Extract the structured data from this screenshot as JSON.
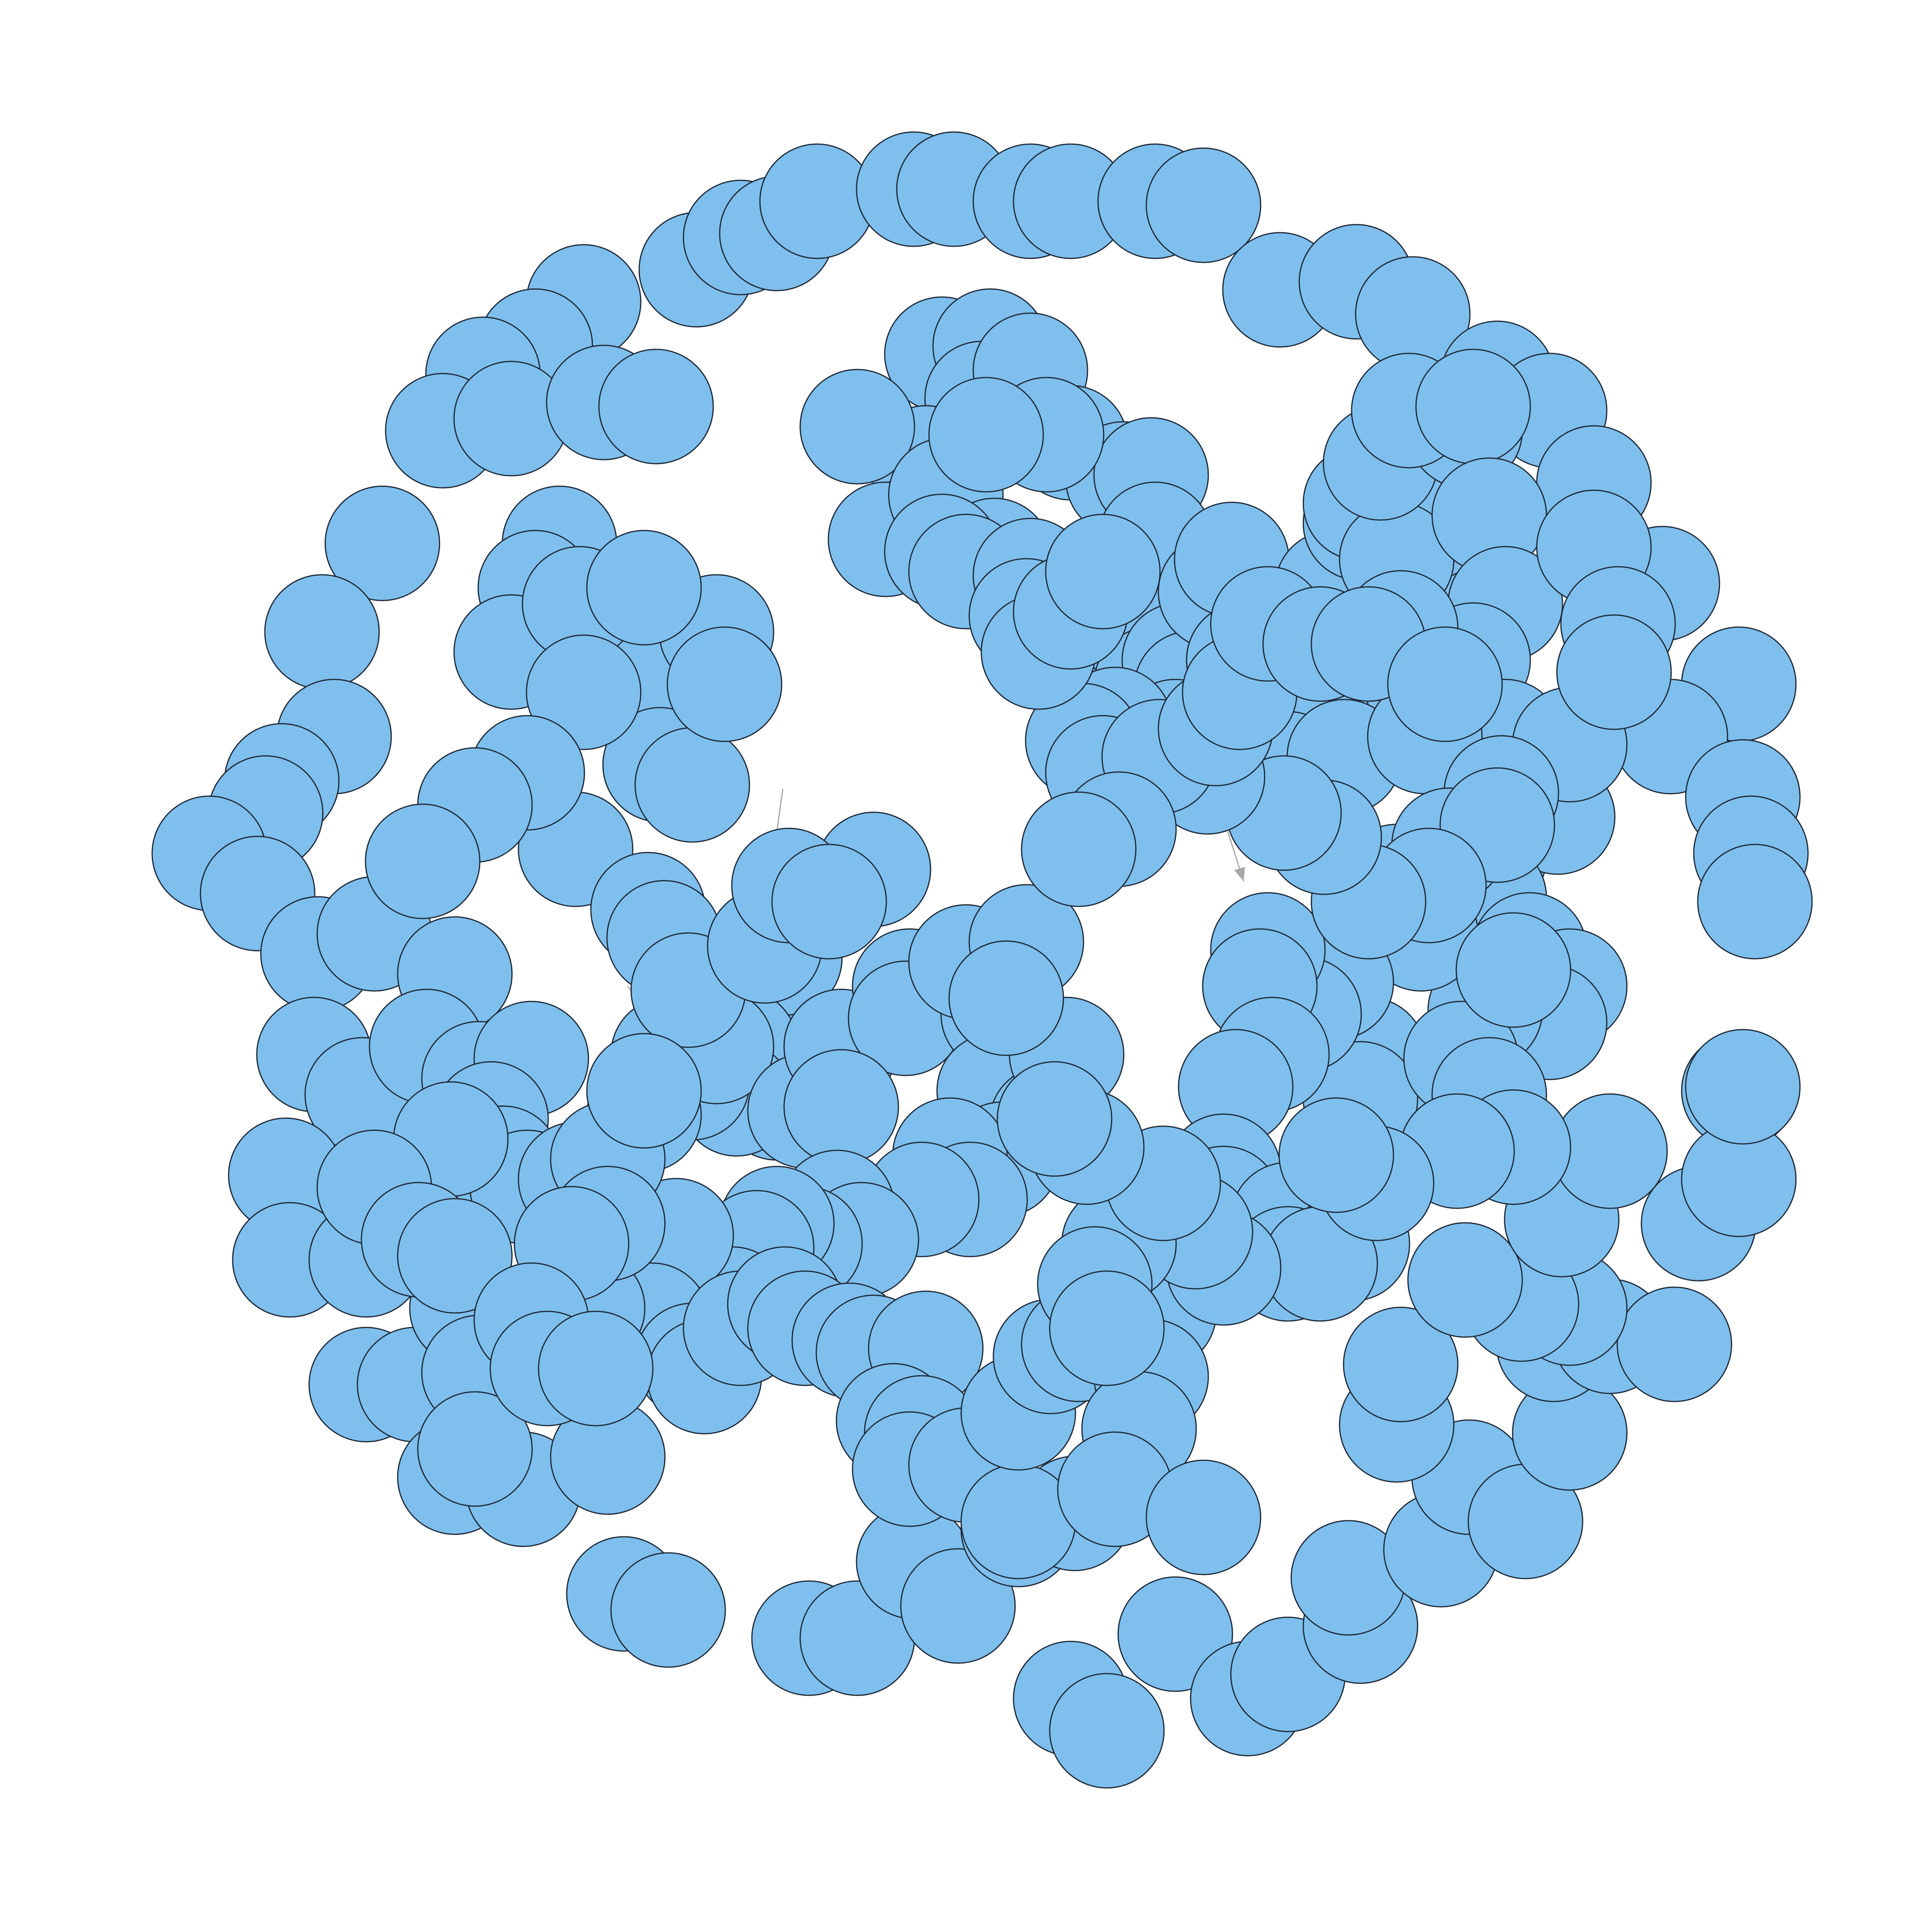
{
  "diagram": {
    "type": "network-graph",
    "directed": true,
    "node_color": "#7fbfed",
    "node_stroke_color": "#1f2a38",
    "edge_color": "#a8a8a8",
    "node_labels_visible": false,
    "node_count_shown": 300
  }
}
